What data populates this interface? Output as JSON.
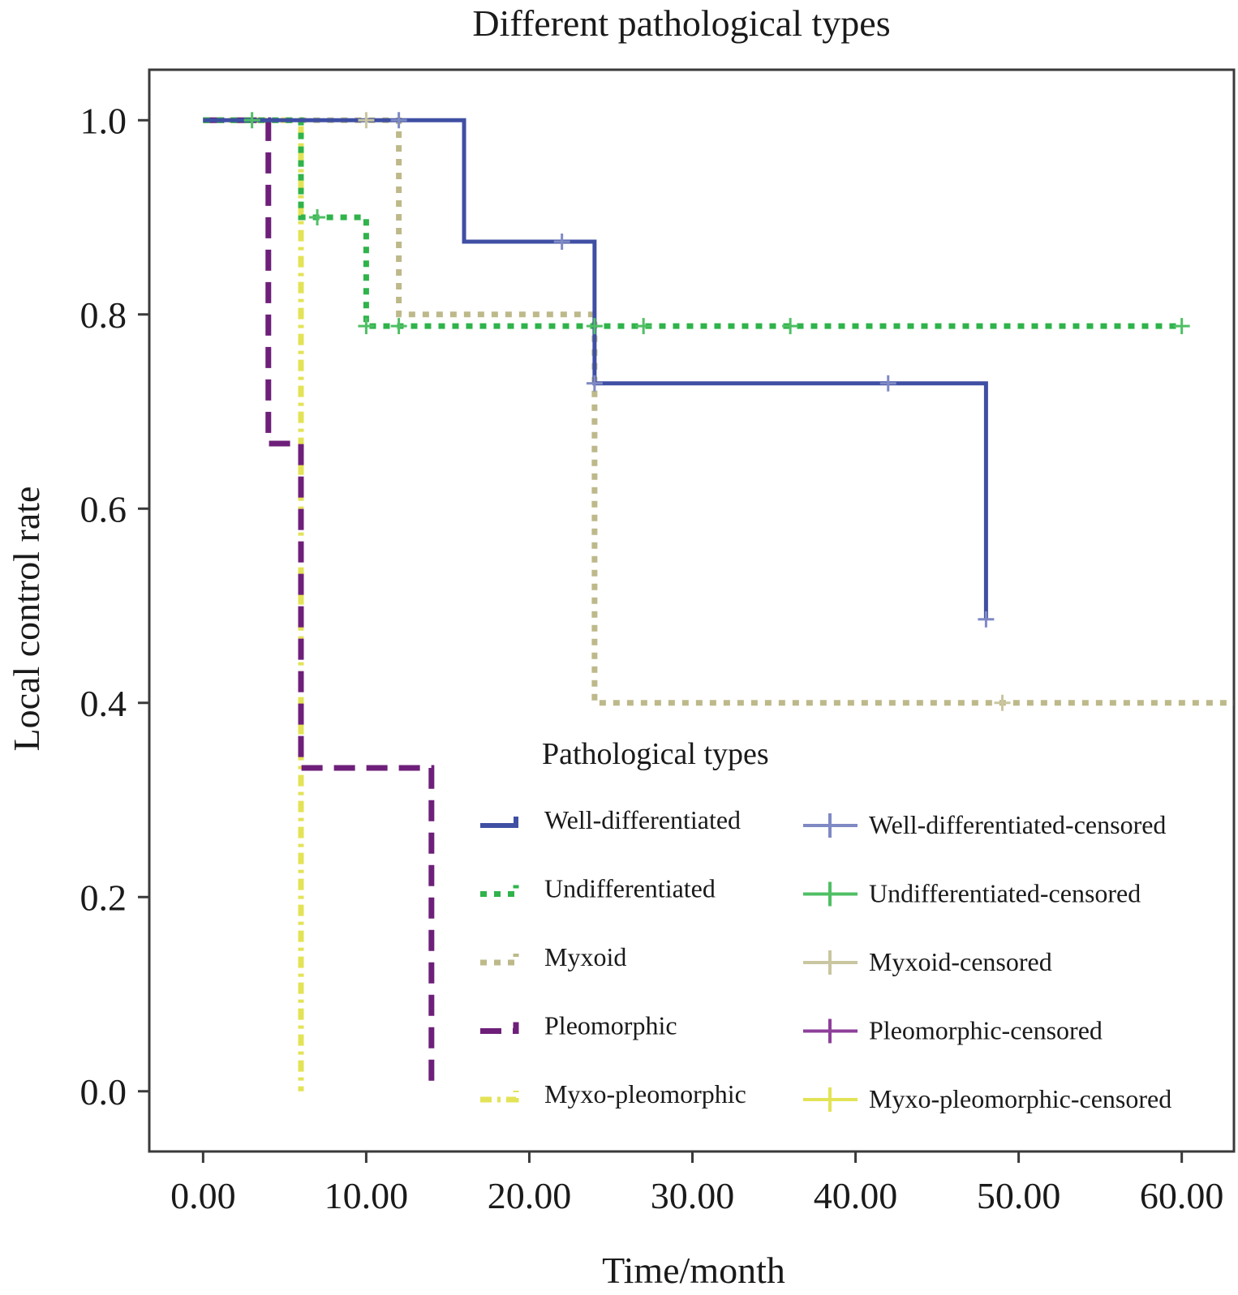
{
  "chart_data": {
    "type": "line",
    "subtype": "kaplan-meier",
    "title": "Different pathological types",
    "xlabel": "Time/month",
    "ylabel": "Local control rate",
    "xlim": [
      -3.3,
      63.2
    ],
    "ylim": [
      -0.062,
      1.052
    ],
    "xticks": [
      0,
      10,
      20,
      30,
      40,
      50,
      60
    ],
    "xtick_labels": [
      "0.00",
      "10.00",
      "20.00",
      "30.00",
      "40.00",
      "50.00",
      "60.00"
    ],
    "yticks": [
      0,
      0.2,
      0.4,
      0.6,
      0.8,
      1.0
    ],
    "ytick_labels": [
      "0.0",
      "0.2",
      "0.4",
      "0.6",
      "0.8",
      "1.0"
    ],
    "grid": false,
    "legend": {
      "title": "Pathological types",
      "placement": "bottom-right"
    },
    "series": [
      {
        "name": "Well-differentiated",
        "censored_label": "Well-differentiated-censored",
        "color": "#3f4fa3",
        "censor_color": "#7f8ac4",
        "style": "solid",
        "steps": [
          [
            0,
            1.0
          ],
          [
            16,
            0.875
          ],
          [
            24,
            0.729
          ],
          [
            48,
            0.486
          ]
        ],
        "end": 48,
        "censored": [
          [
            12,
            1.0
          ],
          [
            22,
            0.875
          ],
          [
            24,
            0.729
          ],
          [
            42,
            0.729
          ],
          [
            48,
            0.486
          ]
        ]
      },
      {
        "name": "Undifferentiated",
        "censored_label": "Undifferentiated-censored",
        "color": "#2fb34a",
        "censor_color": "#4fbf64",
        "style": "dotted",
        "steps": [
          [
            0,
            1.0
          ],
          [
            6,
            0.9
          ],
          [
            10,
            0.788
          ]
        ],
        "end": 60,
        "censored": [
          [
            3,
            1.0
          ],
          [
            7,
            0.9
          ],
          [
            10,
            0.788
          ],
          [
            12,
            0.788
          ],
          [
            24,
            0.788
          ],
          [
            27,
            0.788
          ],
          [
            36,
            0.788
          ],
          [
            60,
            0.788
          ]
        ]
      },
      {
        "name": "Myxoid",
        "censored_label": "Myxoid-censored",
        "color": "#bdb98a",
        "censor_color": "#c9c6a0",
        "style": "dotted",
        "steps": [
          [
            0,
            1.0
          ],
          [
            12,
            0.8
          ],
          [
            24,
            0.4
          ]
        ],
        "end": 63.2,
        "censored": [
          [
            10,
            1.0
          ],
          [
            49,
            0.4
          ]
        ]
      },
      {
        "name": "Pleomorphic",
        "censored_label": "Pleomorphic-censored",
        "color": "#6e1f7a",
        "censor_color": "#8e3f9a",
        "style": "dashed",
        "steps": [
          [
            0,
            1.0
          ],
          [
            4,
            0.667
          ],
          [
            6,
            0.333
          ],
          [
            14,
            0.0
          ]
        ],
        "end": 14,
        "censored": []
      },
      {
        "name": "Myxo-pleomorphic",
        "censored_label": "Myxo-pleomorphic-censored",
        "color": "#e3e356",
        "censor_color": "#e3e356",
        "style": "dashdot",
        "steps": [
          [
            0,
            1.0
          ],
          [
            6,
            0.0
          ]
        ],
        "end": 6,
        "censored": []
      }
    ]
  }
}
